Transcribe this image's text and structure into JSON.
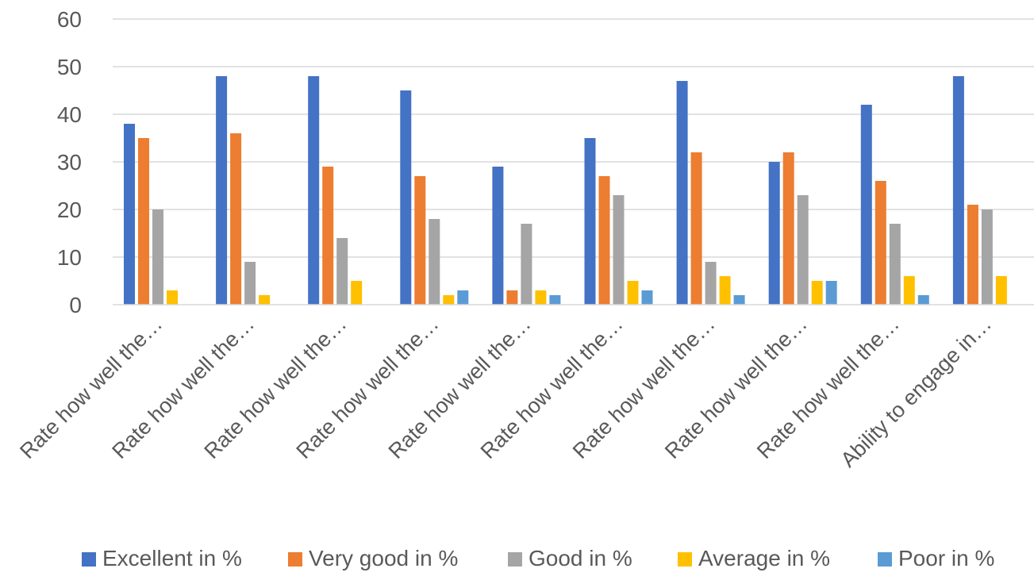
{
  "chart_data": {
    "type": "bar",
    "categories": [
      "Rate how well the…",
      "Rate how well the…",
      "Rate how well the…",
      "Rate how well the…",
      "Rate how well the…",
      "Rate how well the…",
      "Rate how well the…",
      "Rate how well the…",
      "Rate how well the…",
      "Ability to engage in…"
    ],
    "series": [
      {
        "name": "Excellent in %",
        "color": "#4472c4",
        "values": [
          38,
          48,
          48,
          45,
          29,
          35,
          47,
          30,
          42,
          48
        ]
      },
      {
        "name": "Very good in %",
        "color": "#ed7d31",
        "values": [
          35,
          36,
          29,
          27,
          3,
          27,
          32,
          32,
          26,
          21
        ]
      },
      {
        "name": "Good in %",
        "color": "#a5a5a5",
        "values": [
          20,
          9,
          14,
          18,
          17,
          23,
          9,
          23,
          17,
          20
        ]
      },
      {
        "name": "Average in %",
        "color": "#ffc000",
        "values": [
          3,
          2,
          5,
          2,
          3,
          5,
          6,
          5,
          6,
          6
        ]
      },
      {
        "name": "Poor in %",
        "color": "#5b9bd5",
        "values": [
          0,
          0,
          0,
          3,
          2,
          3,
          2,
          5,
          2,
          0
        ]
      }
    ],
    "yticks": [
      "0",
      "10",
      "20",
      "30",
      "40",
      "50",
      "60"
    ],
    "ylim": [
      0,
      60
    ],
    "grid": true,
    "legend": "bottom",
    "title": "",
    "xlabel": "",
    "ylabel": ""
  }
}
